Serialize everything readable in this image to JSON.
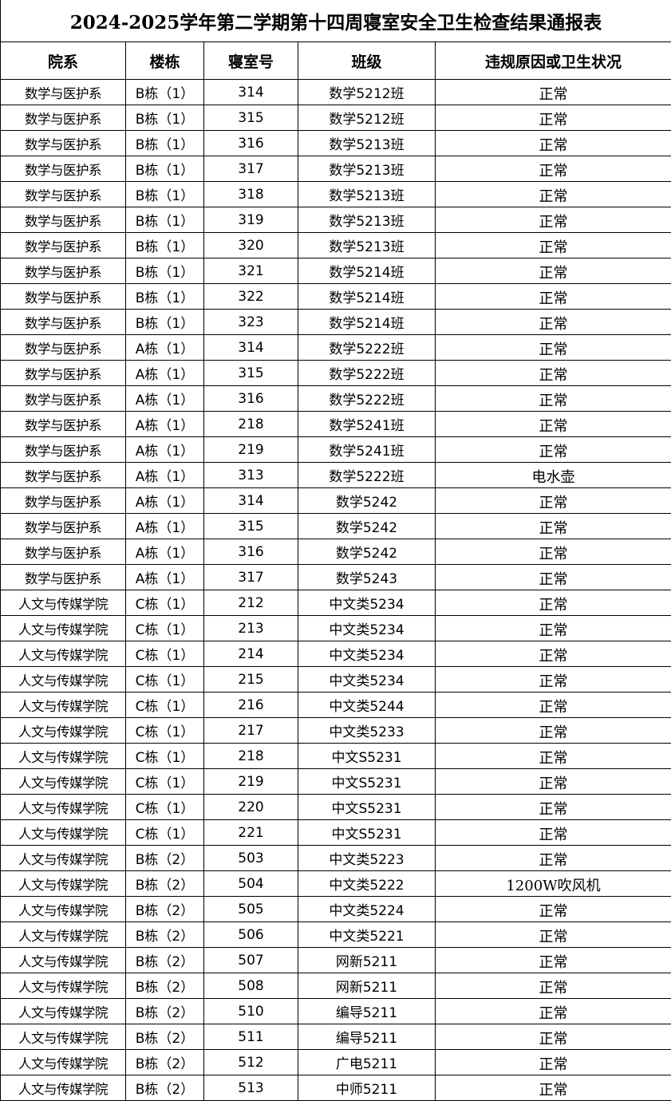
{
  "title": "2024-2025学年第二学期第十四周寝室安全卫生检查结果通报表",
  "table": {
    "header": [
      "院系",
      "楼栋",
      "寝室号",
      "班级",
      "违规原因或卫生状况"
    ],
    "rows": [
      [
        "数学与医护系",
        "B栋（1）",
        "314",
        "数学5212班",
        "正常"
      ],
      [
        "数学与医护系",
        "B栋（1）",
        "315",
        "数学5212班",
        "正常"
      ],
      [
        "数学与医护系",
        "B栋（1）",
        "316",
        "数学5213班",
        "正常"
      ],
      [
        "数学与医护系",
        "B栋（1）",
        "317",
        "数学5213班",
        "正常"
      ],
      [
        "数学与医护系",
        "B栋（1）",
        "318",
        "数学5213班",
        "正常"
      ],
      [
        "数学与医护系",
        "B栋（1）",
        "319",
        "数学5213班",
        "正常"
      ],
      [
        "数学与医护系",
        "B栋（1）",
        "320",
        "数学5213班",
        "正常"
      ],
      [
        "数学与医护系",
        "B栋（1）",
        "321",
        "数学5214班",
        "正常"
      ],
      [
        "数学与医护系",
        "B栋（1）",
        "322",
        "数学5214班",
        "正常"
      ],
      [
        "数学与医护系",
        "B栋（1）",
        "323",
        "数学5214班",
        "正常"
      ],
      [
        "数学与医护系",
        "A栋（1）",
        "314",
        "数学5222班",
        "正常"
      ],
      [
        "数学与医护系",
        "A栋（1）",
        "315",
        "数学5222班",
        "正常"
      ],
      [
        "数学与医护系",
        "A栋（1）",
        "316",
        "数学5222班",
        "正常"
      ],
      [
        "数学与医护系",
        "A栋（1）",
        "218",
        "数学5241班",
        "正常"
      ],
      [
        "数学与医护系",
        "A栋（1）",
        "219",
        "数学5241班",
        "正常"
      ],
      [
        "数学与医护系",
        "A栋（1）",
        "313",
        "数学5222班",
        "电水壶"
      ],
      [
        "数学与医护系",
        "A栋（1）",
        "314",
        "数学5242",
        "正常"
      ],
      [
        "数学与医护系",
        "A栋（1）",
        "315",
        "数学5242",
        "正常"
      ],
      [
        "数学与医护系",
        "A栋（1）",
        "316",
        "数学5242",
        "正常"
      ],
      [
        "数学与医护系",
        "A栋（1）",
        "317",
        "数学5243",
        "正常"
      ],
      [
        "人文与传媒学院",
        "C栋（1）",
        "212",
        "中文类5234",
        "正常"
      ],
      [
        "人文与传媒学院",
        "C栋（1）",
        "213",
        "中文类5234",
        "正常"
      ],
      [
        "人文与传媒学院",
        "C栋（1）",
        "214",
        "中文类5234",
        "正常"
      ],
      [
        "人文与传媒学院",
        "C栋（1）",
        "215",
        "中文类5234",
        "正常"
      ],
      [
        "人文与传媒学院",
        "C栋（1）",
        "216",
        "中文类5244",
        "正常"
      ],
      [
        "人文与传媒学院",
        "C栋（1）",
        "217",
        "中文类5233",
        "正常"
      ],
      [
        "人文与传媒学院",
        "C栋（1）",
        "218",
        "中文S5231",
        "正常"
      ],
      [
        "人文与传媒学院",
        "C栋（1）",
        "219",
        "中文S5231",
        "正常"
      ],
      [
        "人文与传媒学院",
        "C栋（1）",
        "220",
        "中文S5231",
        "正常"
      ],
      [
        "人文与传媒学院",
        "C栋（1）",
        "221",
        "中文S5231",
        "正常"
      ],
      [
        "人文与传媒学院",
        "B栋（2）",
        "503",
        "中文类5223",
        "正常"
      ],
      [
        "人文与传媒学院",
        "B栋（2）",
        "504",
        "中文类5222",
        "1200W吹风机"
      ],
      [
        "人文与传媒学院",
        "B栋（2）",
        "505",
        "中文类5224",
        "正常"
      ],
      [
        "人文与传媒学院",
        "B栋（2）",
        "506",
        "中文类5221",
        "正常"
      ],
      [
        "人文与传媒学院",
        "B栋（2）",
        "507",
        "网新5211",
        "正常"
      ],
      [
        "人文与传媒学院",
        "B栋（2）",
        "508",
        "网新5211",
        "正常"
      ],
      [
        "人文与传媒学院",
        "B栋（2）",
        "510",
        "编导5211",
        "正常"
      ],
      [
        "人文与传媒学院",
        "B栋（2）",
        "511",
        "编导5211",
        "正常"
      ],
      [
        "人文与传媒学院",
        "B栋（2）",
        "512",
        "广电5211",
        "正常"
      ],
      [
        "人文与传媒学院",
        "B栋（2）",
        "513",
        "中师5211",
        "正常"
      ]
    ]
  }
}
